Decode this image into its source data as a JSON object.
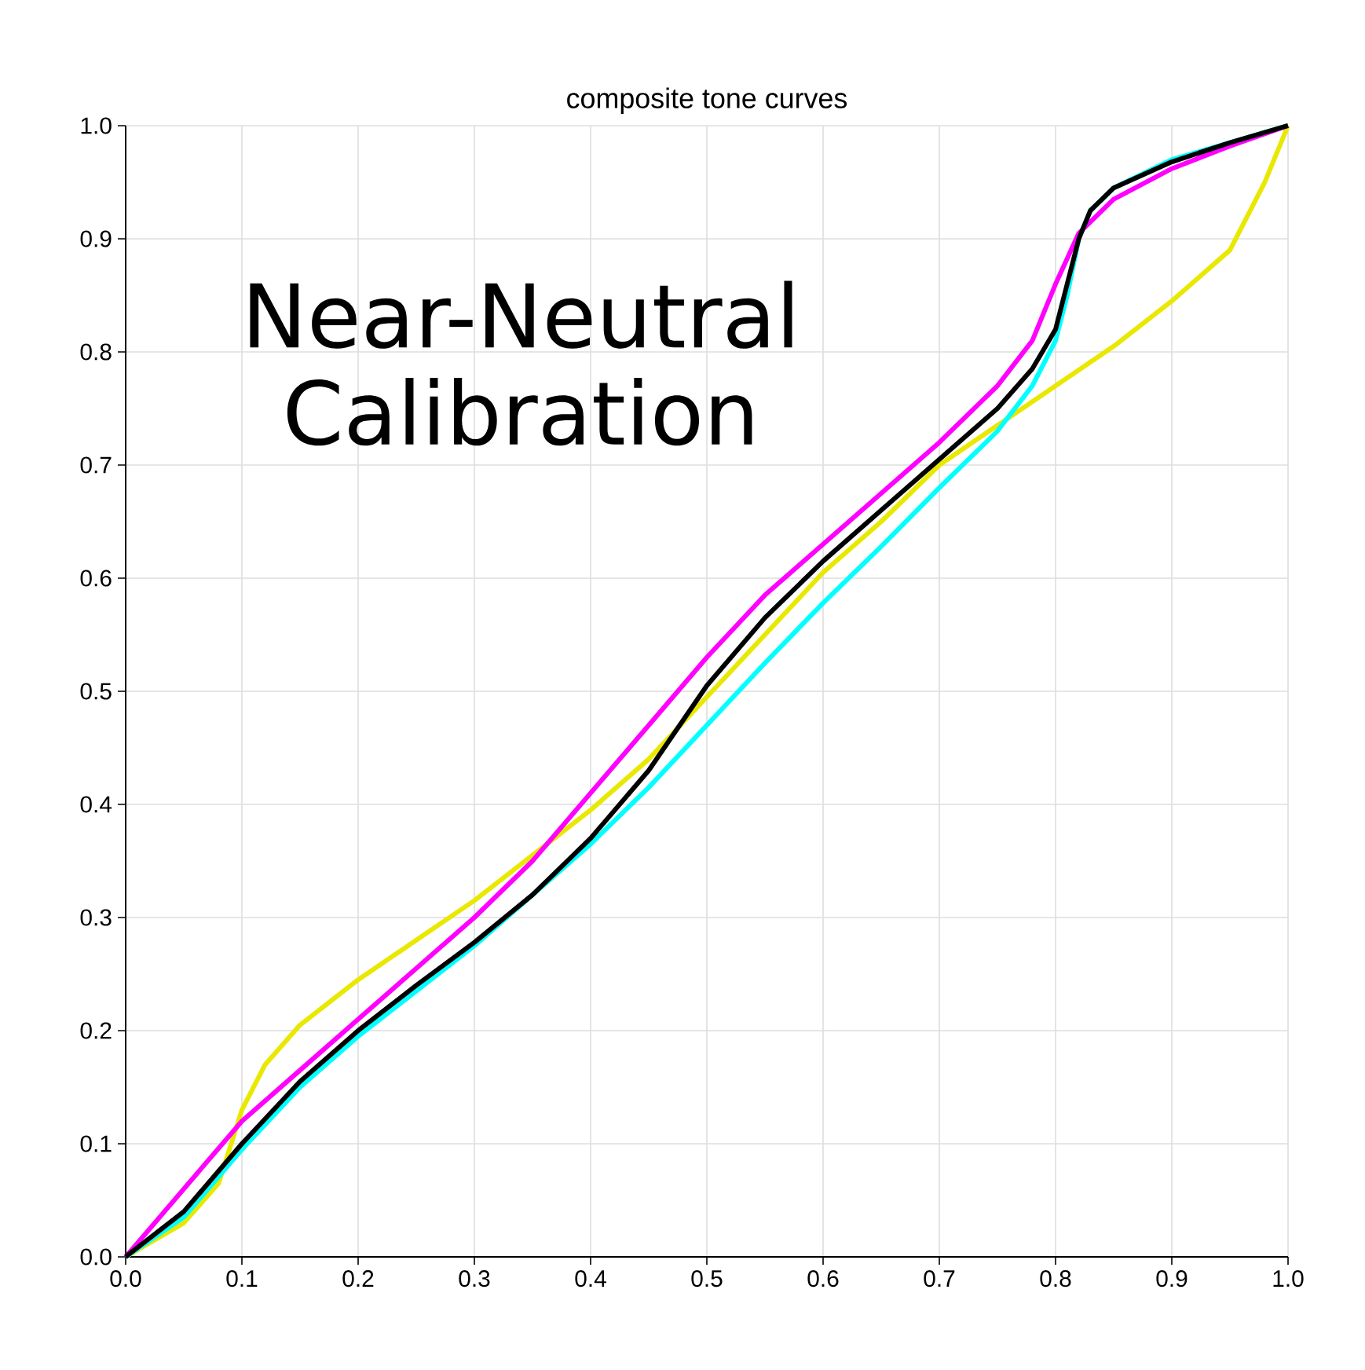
{
  "chart_data": {
    "type": "line",
    "title": "composite tone curves",
    "annotations": [
      "Near-Neutral Calibration"
    ],
    "xlim": [
      0,
      1
    ],
    "ylim": [
      0,
      1
    ],
    "xticks": [
      {
        "value": 0,
        "label": "0.0"
      },
      {
        "value": 0.1,
        "label": "0.1"
      },
      {
        "value": 0.2,
        "label": "0.2"
      },
      {
        "value": 0.3,
        "label": "0.3"
      },
      {
        "value": 0.4,
        "label": "0.4"
      },
      {
        "value": 0.5,
        "label": "0.5"
      },
      {
        "value": 0.6,
        "label": "0.6"
      },
      {
        "value": 0.7,
        "label": "0.7"
      },
      {
        "value": 0.8,
        "label": "0.8"
      },
      {
        "value": 0.9,
        "label": "0.9"
      },
      {
        "value": 1,
        "label": "1.0"
      }
    ],
    "yticks": [
      {
        "value": 0,
        "label": "0.0"
      },
      {
        "value": 0.1,
        "label": "0.1"
      },
      {
        "value": 0.2,
        "label": "0.2"
      },
      {
        "value": 0.3,
        "label": "0.3"
      },
      {
        "value": 0.4,
        "label": "0.4"
      },
      {
        "value": 0.5,
        "label": "0.5"
      },
      {
        "value": 0.6,
        "label": "0.6"
      },
      {
        "value": 0.7,
        "label": "0.7"
      },
      {
        "value": 0.8,
        "label": "0.8"
      },
      {
        "value": 0.9,
        "label": "0.9"
      },
      {
        "value": 1,
        "label": "1.0"
      }
    ],
    "grid": true,
    "marker": "none",
    "line_style": "solid",
    "series": [
      {
        "color": "#e8e800",
        "x": [
          0,
          0.05,
          0.08,
          0.1,
          0.12,
          0.15,
          0.2,
          0.25,
          0.3,
          0.35,
          0.4,
          0.45,
          0.5,
          0.55,
          0.6,
          0.65,
          0.7,
          0.75,
          0.8,
          0.85,
          0.9,
          0.95,
          0.98,
          1
        ],
        "values": [
          0,
          0.03,
          0.065,
          0.13,
          0.17,
          0.205,
          0.245,
          0.28,
          0.315,
          0.355,
          0.395,
          0.44,
          0.495,
          0.55,
          0.605,
          0.65,
          0.7,
          0.735,
          0.77,
          0.805,
          0.845,
          0.89,
          0.95,
          1
        ]
      },
      {
        "color": "#00ffff",
        "x": [
          0,
          0.05,
          0.1,
          0.15,
          0.2,
          0.25,
          0.3,
          0.35,
          0.4,
          0.45,
          0.5,
          0.55,
          0.6,
          0.65,
          0.7,
          0.75,
          0.78,
          0.8,
          0.81,
          0.82,
          0.83,
          0.85,
          0.9,
          0.95,
          1
        ],
        "values": [
          0,
          0.035,
          0.095,
          0.15,
          0.195,
          0.235,
          0.275,
          0.32,
          0.365,
          0.415,
          0.47,
          0.525,
          0.578,
          0.628,
          0.68,
          0.73,
          0.77,
          0.81,
          0.85,
          0.9,
          0.925,
          0.945,
          0.97,
          0.985,
          1
        ]
      },
      {
        "color": "#ff00ff",
        "x": [
          0,
          0.05,
          0.1,
          0.15,
          0.2,
          0.25,
          0.3,
          0.35,
          0.4,
          0.45,
          0.5,
          0.55,
          0.6,
          0.65,
          0.7,
          0.75,
          0.78,
          0.8,
          0.82,
          0.85,
          0.9,
          0.95,
          1
        ],
        "values": [
          0,
          0.06,
          0.12,
          0.165,
          0.21,
          0.255,
          0.3,
          0.35,
          0.41,
          0.47,
          0.53,
          0.585,
          0.63,
          0.675,
          0.72,
          0.77,
          0.81,
          0.86,
          0.905,
          0.935,
          0.962,
          0.982,
          1
        ]
      },
      {
        "color": "#000000",
        "x": [
          0,
          0.05,
          0.1,
          0.15,
          0.2,
          0.25,
          0.3,
          0.35,
          0.4,
          0.45,
          0.5,
          0.55,
          0.6,
          0.65,
          0.7,
          0.75,
          0.78,
          0.8,
          0.81,
          0.82,
          0.83,
          0.85,
          0.9,
          0.95,
          1
        ],
        "values": [
          0,
          0.04,
          0.1,
          0.155,
          0.2,
          0.24,
          0.278,
          0.32,
          0.37,
          0.43,
          0.505,
          0.565,
          0.615,
          0.66,
          0.705,
          0.75,
          0.785,
          0.82,
          0.86,
          0.9,
          0.925,
          0.945,
          0.968,
          0.985,
          1
        ]
      }
    ]
  }
}
